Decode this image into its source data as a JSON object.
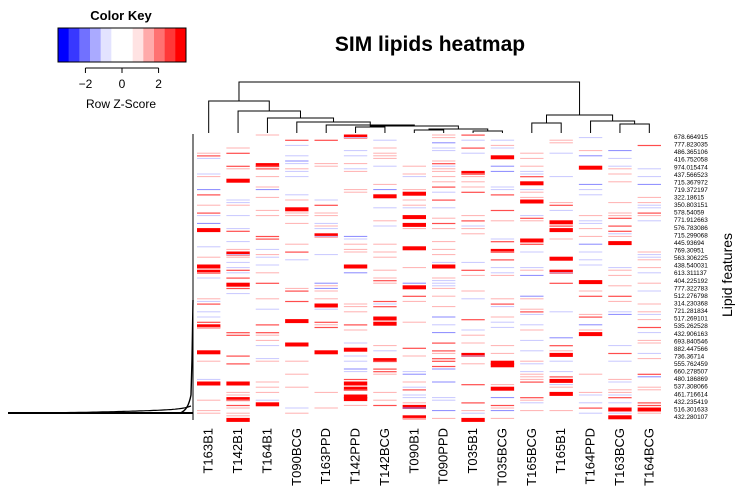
{
  "chart_data": {
    "type": "heatmap",
    "title": "SIM lipids heatmap",
    "ylabel": "Lipid features",
    "columns": [
      "T163B1",
      "T142B1",
      "T164B1",
      "T090BCG",
      "T163PPD",
      "T142PPD",
      "T142BCG",
      "T090B1",
      "T090PPD",
      "T035B1",
      "T035BCG",
      "T165BCG",
      "T165B1",
      "T164PPD",
      "T163BCG",
      "T164BCG"
    ],
    "row_labels": [
      "678.664915",
      "777.823035",
      "486.365106",
      "416.752058",
      "974.015474",
      "437.566523",
      "715.367972",
      "719.372197",
      "322.18615",
      "350.803151",
      "578.54059",
      "771.912663",
      "576.783086",
      "715.299068",
      "445.93694",
      "769.30951",
      "563.306225",
      "438.540031",
      "613.311137",
      "404.225192",
      "777.322783",
      "512.276798",
      "314.230368",
      "721.281834",
      "517.269101",
      "535.262528",
      "432.906163",
      "693.840546",
      "882.447566",
      "736.36714",
      "555.762459",
      "660.278507",
      "480.186869",
      "537.308066",
      "461.716614",
      "432.235419",
      "516.301633",
      "432.280107"
    ],
    "color_key": {
      "title": "Color Key",
      "xlabel": "Row Z-Score",
      "ticks": [
        -2,
        0,
        2
      ],
      "range": [
        -3.5,
        3.5
      ],
      "colors": [
        "#0000ff",
        "#3838ff",
        "#7171ff",
        "#aaaaff",
        "#e3e3ff",
        "#ffffff",
        "#ffffff",
        "#ffe3e3",
        "#ffaaaa",
        "#ff7171",
        "#ff3838",
        "#ff0000"
      ]
    },
    "low_color": "#0000ff",
    "mid_color": "#ffffff",
    "high_color": "#ff0000"
  }
}
